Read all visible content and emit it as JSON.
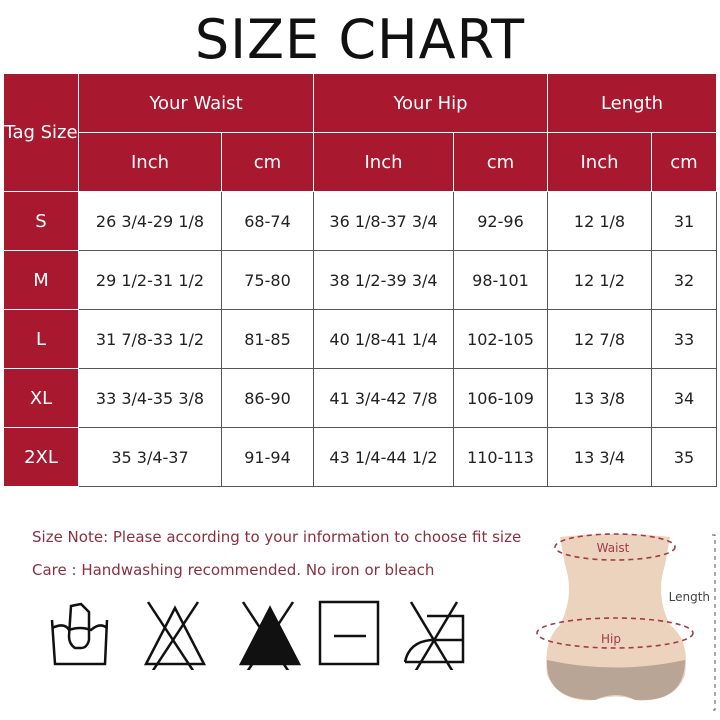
{
  "title": "SIZE CHART",
  "header": {
    "tag": "Tag Size",
    "groups": [
      "Your Waist",
      "Your Hip",
      "Length"
    ],
    "units": [
      "Inch",
      "cm",
      "Inch",
      "cm",
      "Inch",
      "cm"
    ]
  },
  "rows": [
    {
      "size": "S",
      "cells": [
        "26 3/4-29 1/8",
        "68-74",
        "36 1/8-37 3/4",
        "92-96",
        "12 1/8",
        "31"
      ]
    },
    {
      "size": "M",
      "cells": [
        "29 1/2-31 1/2",
        "75-80",
        "38 1/2-39 3/4",
        "98-101",
        "12 1/2",
        "32"
      ]
    },
    {
      "size": "L",
      "cells": [
        "31 7/8-33 1/2",
        "81-85",
        "40 1/8-41 1/4",
        "102-105",
        "12 7/8",
        "33"
      ]
    },
    {
      "size": "XL",
      "cells": [
        "33 3/4-35 3/8",
        "86-90",
        "41 3/4-42 7/8",
        "106-109",
        "13 3/8",
        "34"
      ]
    },
    {
      "size": "2XL",
      "cells": [
        "35 3/4-37",
        "91-94",
        "43 1/4-44 1/2",
        "110-113",
        "13 3/4",
        "35"
      ]
    }
  ],
  "notes": {
    "size_note": "Size Note: Please according to your information to choose fit size",
    "care": "Care : Handwashing recommended. No iron or bleach"
  },
  "care_icons": [
    "hand-wash-icon",
    "no-bleach-icon",
    "no-chlorine-bleach-icon",
    "dry-flat-icon",
    "no-iron-icon"
  ],
  "diagram": {
    "waist": "Waist",
    "hip": "Hip",
    "length": "Length"
  },
  "colors": {
    "header": "#a8182f",
    "note": "#8a3040"
  }
}
